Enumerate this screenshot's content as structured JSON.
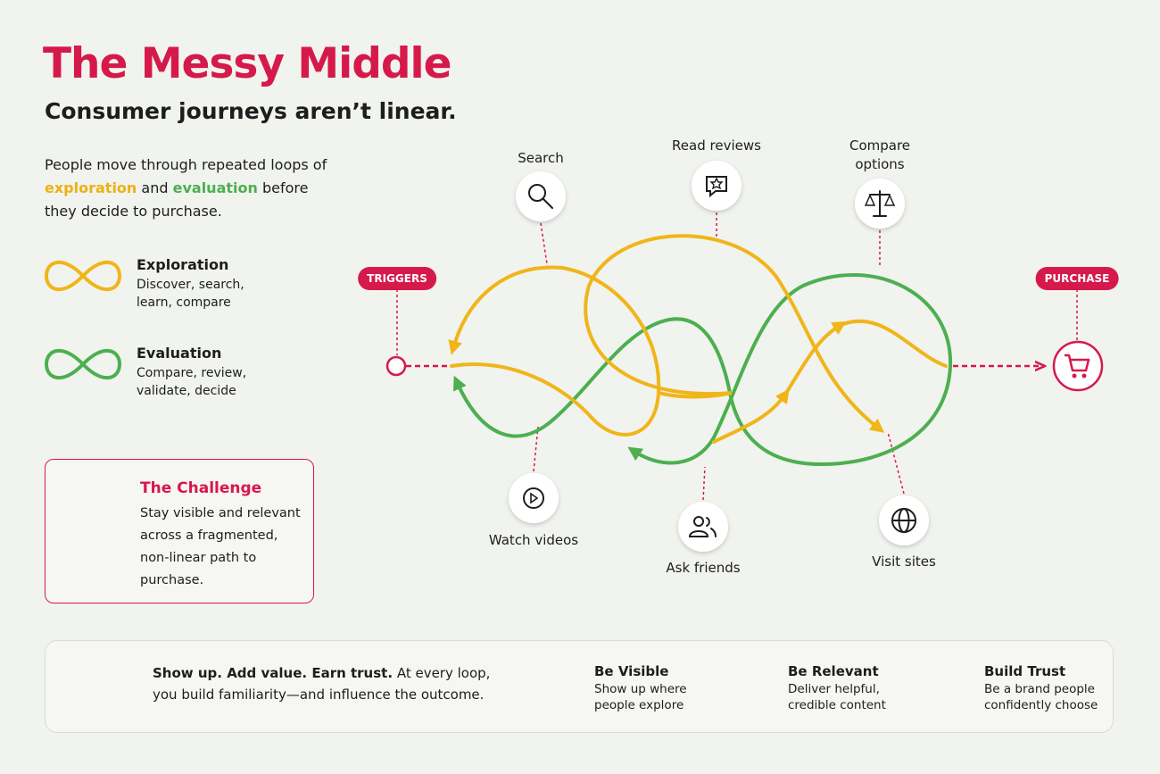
{
  "header": {
    "title": "The Messy Middle",
    "subtitle": "Consumer journeys aren’t linear."
  },
  "intro": {
    "parts": [
      "People move through repeated loops of",
      "exploration",
      "and",
      "evaluation",
      "before they decide to purchase."
    ]
  },
  "legend": [
    {
      "title": "Exploration",
      "description": "Discover, search, learn, compare"
    },
    {
      "title": "Evaluation",
      "description": "Compare, review, validate, decide"
    }
  ],
  "challenge": {
    "title": "The Challenge",
    "text": "Stay visible and relevant across a fragmented, non-linear path to purchase."
  },
  "diagram": {
    "start": "TRIGGERS",
    "end": "PURCHASE",
    "nodes": [
      {
        "label": "Search"
      },
      {
        "label": "Read reviews"
      },
      {
        "label": "Compare options"
      },
      {
        "label": "Watch videos"
      },
      {
        "label": "Ask friends"
      },
      {
        "label": "Visit sites"
      }
    ]
  },
  "footer": {
    "headline": "Show up. Add value. Earn trust.",
    "text": "At every loop, you build familiarity—and influence the outcome.",
    "pillars": [
      {
        "title": "Be Visible",
        "description": "Show up where people explore"
      },
      {
        "title": "Be Relevant",
        "description": "Deliver helpful, credible content"
      },
      {
        "title": "Build Trust",
        "description": "Be a brand people confidently choose"
      }
    ]
  }
}
